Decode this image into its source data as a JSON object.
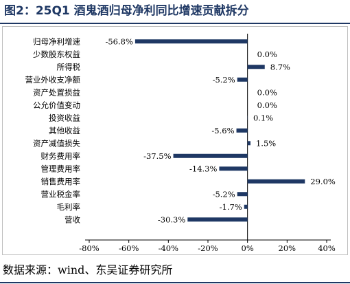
{
  "title": "图2：25Q1 酒鬼酒归母净利同比增速贡献拆分",
  "source": "数据来源：wind、东吴证券研究所",
  "colors": {
    "bar": "#1f3864",
    "title": "#1f3864"
  },
  "chart_data": {
    "type": "bar",
    "orientation": "horizontal",
    "categories": [
      "归母净利增速",
      "少数股东权益",
      "所得税",
      "营业外收支净额",
      "资产处置损益",
      "公允价值变动",
      "投资收益",
      "其他收益",
      "资产减值损失",
      "财务费用率",
      "管理费用率",
      "销售费用率",
      "营业税金率",
      "毛利率",
      "营收"
    ],
    "values": [
      -56.8,
      0.0,
      8.7,
      -5.2,
      0.0,
      0.0,
      0.1,
      -5.6,
      1.5,
      -37.5,
      -14.3,
      29.0,
      -5.2,
      -1.7,
      -30.3
    ],
    "data_labels": [
      "-56.8%",
      "0.0%",
      "8.7%",
      "-5.2%",
      "0.0%",
      "0.0%",
      "0.1%",
      "-5.6%",
      "1.5%",
      "-37.5%",
      "-14.3%",
      "29.0%",
      "-5.2%",
      "-1.7%",
      "-30.3%"
    ],
    "xlim": [
      -80,
      40
    ],
    "xticks": [
      "-80%",
      "-60%",
      "-40%",
      "-20%",
      "0%",
      "20%",
      "40%"
    ],
    "xlabel": "",
    "ylabel": "",
    "grid": false,
    "legend": "none"
  }
}
